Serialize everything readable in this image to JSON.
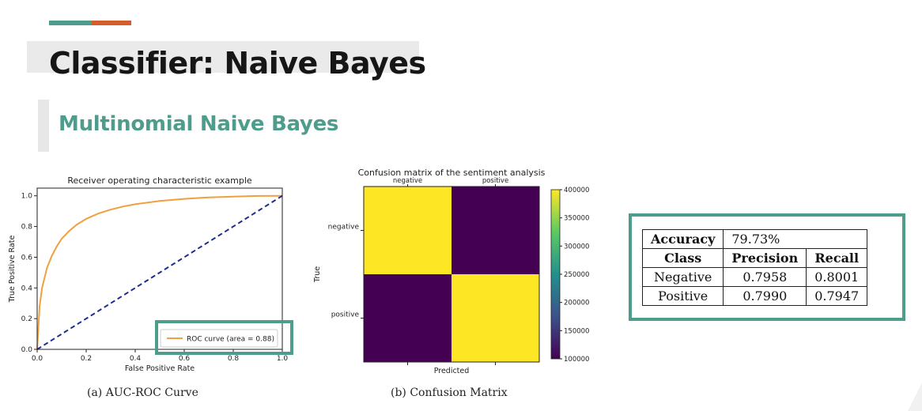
{
  "slide": {
    "title": "Classifier: Naive Bayes",
    "subtitle": "Multinomial Naive Bayes",
    "accent_colors": [
      "#4e9d8c",
      "#d55d2a"
    ],
    "highlight_color": "#4e9d8c"
  },
  "captions": {
    "roc": "(a) AUC-ROC Curve",
    "cm": "(b) Confusion Matrix"
  },
  "chart_data": [
    {
      "type": "line",
      "title": "Receiver operating characteristic example",
      "xlabel": "False Positive Rate",
      "ylabel": "True Positive Rate",
      "xlim": [
        0,
        1
      ],
      "ylim": [
        0,
        1.05
      ],
      "xticks": [
        "0.0",
        "0.2",
        "0.4",
        "0.6",
        "0.8",
        "1.0"
      ],
      "yticks": [
        "0.0",
        "0.2",
        "0.4",
        "0.6",
        "0.8",
        "1.0"
      ],
      "legend_position": "lower-right",
      "series": [
        {
          "name": "ROC curve (area = 0.88)",
          "color": "#f0a040",
          "style": "solid",
          "x": [
            0,
            0.01,
            0.02,
            0.04,
            0.06,
            0.08,
            0.1,
            0.13,
            0.16,
            0.2,
            0.25,
            0.3,
            0.35,
            0.4,
            0.5,
            0.6,
            0.7,
            0.8,
            0.9,
            1.0
          ],
          "y": [
            0,
            0.28,
            0.4,
            0.53,
            0.61,
            0.67,
            0.72,
            0.77,
            0.81,
            0.85,
            0.885,
            0.91,
            0.93,
            0.945,
            0.966,
            0.98,
            0.99,
            0.995,
            0.999,
            1.0
          ]
        },
        {
          "color": "#1f2e8c",
          "style": "dashed",
          "x": [
            0,
            1
          ],
          "y": [
            0,
            1
          ]
        }
      ]
    },
    {
      "type": "heatmap",
      "title": "Confusion matrix of the sentiment analysis",
      "xlabel": "Predicted",
      "ylabel": "True",
      "x_categories": [
        "negative",
        "positive"
      ],
      "y_categories": [
        "negative",
        "positive"
      ],
      "values": [
        [
          400000,
          100000
        ],
        [
          100000,
          400000
        ]
      ],
      "colorbar": {
        "range": [
          100000,
          400000
        ],
        "ticks": [
          "100000",
          "150000",
          "200000",
          "250000",
          "300000",
          "350000",
          "400000"
        ],
        "colors": [
          "#440154",
          "#3b528b",
          "#21908d",
          "#5dc963",
          "#fde725"
        ]
      }
    }
  ],
  "metrics_table": {
    "accuracy_label": "Accuracy",
    "accuracy_value": "79.73%",
    "headers": [
      "Class",
      "Precision",
      "Recall"
    ],
    "rows": [
      [
        "Negative",
        "0.7958",
        "0.8001"
      ],
      [
        "Positive",
        "0.7990",
        "0.7947"
      ]
    ]
  }
}
